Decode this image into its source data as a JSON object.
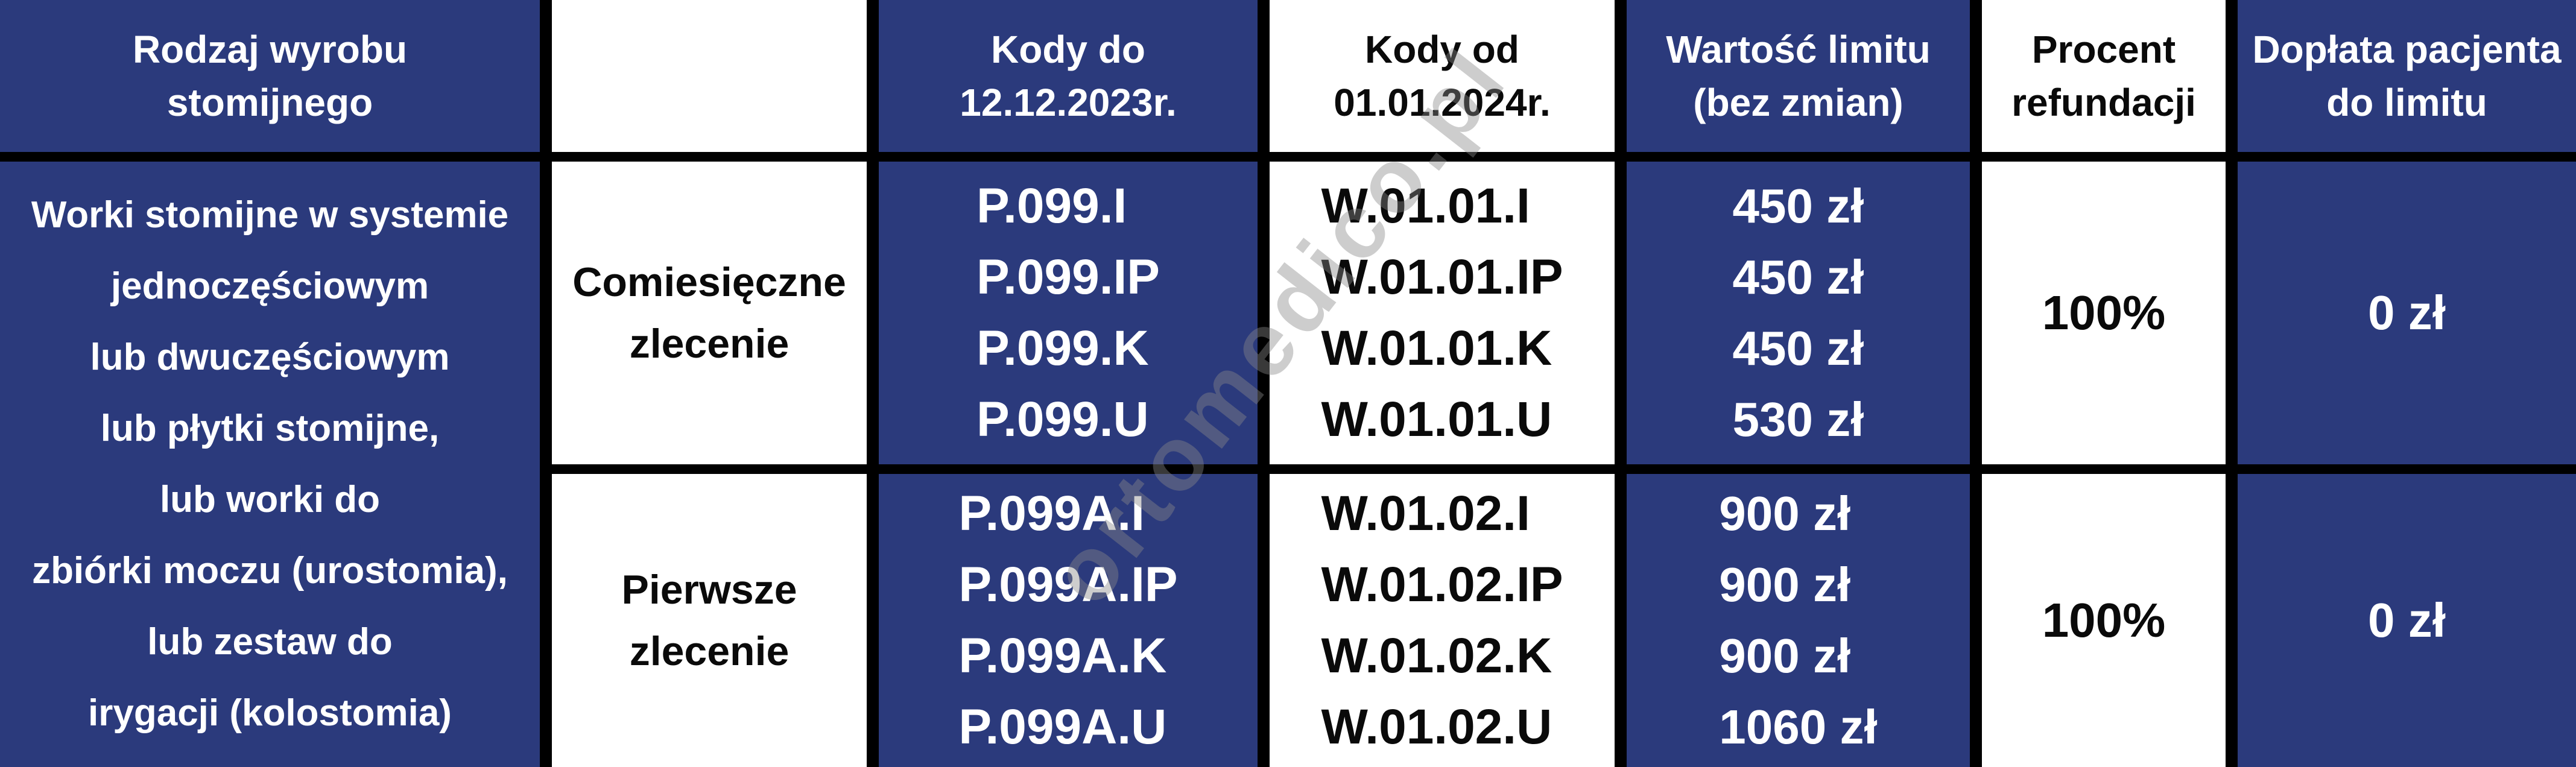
{
  "colors": {
    "cell_navy": "#2b3a7c",
    "cell_white": "#ffffff",
    "grid_border": "#000000",
    "text_on_navy": "#ffffff",
    "text_on_white": "#0a0a0a",
    "watermark_gray": "#878787"
  },
  "watermark_text": "ortomedico.pl",
  "table": {
    "headers": [
      "Rodzaj wyrobu\nstomijnego",
      "",
      "Kody do\n12.12.2023r.",
      "Kody od\n01.01.2024r.",
      "Wartość limitu\n(bez zmian)",
      "Procent\nrefundacji",
      "Dopłata pacjenta\ndo limitu"
    ],
    "product_cell": "Worki stomijne w systemie\njednoczęściowym\nlub dwuczęściowym\nlub płytki stomijne,\nlub worki do\nzbiórki moczu (urostomia),\nlub zestaw do\nirygacji (kolostomia)",
    "rows": [
      {
        "order_type": "Comiesięczne\nzlecenie",
        "codes_old": "P.099.I\nP.099.IP\nP.099.K\nP.099.U",
        "codes_new": "W.01.01.I\nW.01.01.IP\nW.01.01.K\nW.01.01.U",
        "limit_values": "450 zł\n450 zł\n450 zł\n530 zł",
        "refund_percent": "100%",
        "patient_copay": "0 zł"
      },
      {
        "order_type": "Pierwsze\nzlecenie",
        "codes_old": "P.099A.I\nP.099A.IP\nP.099A.K\nP.099A.U",
        "codes_new": "W.01.02.I\nW.01.02.IP\nW.01.02.K\nW.01.02.U",
        "limit_values": "900 zł\n900 zł\n900 zł\n1060 zł",
        "refund_percent": "100%",
        "patient_copay": "0 zł"
      }
    ]
  },
  "chart_data": {
    "type": "table",
    "title": "",
    "columns": [
      "Rodzaj wyrobu stomijnego",
      "",
      "Kody do 12.12.2023r.",
      "Kody od 01.01.2024r.",
      "Wartość limitu (bez zmian)",
      "Procent refundacji",
      "Dopłata pacjenta do limitu"
    ],
    "rows": [
      [
        "Worki stomijne w systemie jednoczęściowym lub dwuczęściowym lub płytki stomijne, lub worki do zbiórki moczu (urostomia), lub zestaw do irygacji (kolostomia)",
        "Comiesięczne zlecenie",
        "P.099.I; P.099.IP; P.099.K; P.099.U",
        "W.01.01.I; W.01.01.IP; W.01.01.K; W.01.01.U",
        "450 zł; 450 zł; 450 zł; 530 zł",
        "100%",
        "0 zł"
      ],
      [
        "Worki stomijne w systemie jednoczęściowym lub dwuczęściowym lub płytki stomijne, lub worki do zbiórki moczu (urostomia), lub zestaw do irygacji (kolostomia)",
        "Pierwsze zlecenie",
        "P.099A.I; P.099A.IP; P.099A.K; P.099A.U",
        "W.01.02.I; W.01.02.IP; W.01.02.K; W.01.02.U",
        "900 zł; 900 zł; 900 zł; 1060 zł",
        "100%",
        "0 zł"
      ]
    ]
  }
}
